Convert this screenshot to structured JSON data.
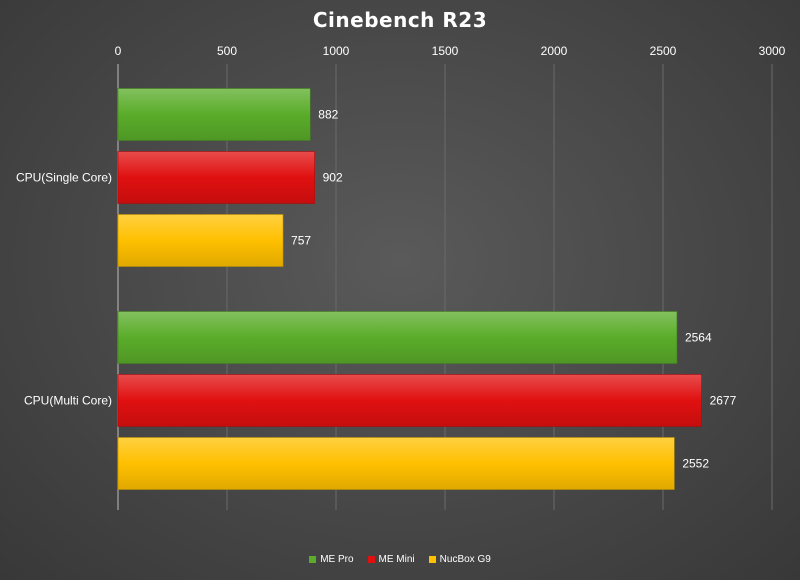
{
  "chart_data": {
    "type": "bar",
    "orientation": "horizontal",
    "title": "Cinebench R23",
    "categories": [
      "CPU(Single Core)",
      "CPU(Multi Core)"
    ],
    "series": [
      {
        "name": "ME Pro",
        "values": [
          882,
          2564
        ],
        "color": "#5aac2a"
      },
      {
        "name": "ME Mini",
        "values": [
          902,
          2677
        ],
        "color": "#e01010"
      },
      {
        "name": "NucBox G9",
        "values": [
          757,
          2552
        ],
        "color": "#ffc000"
      }
    ],
    "xlim": [
      0,
      3000
    ],
    "xticks": [
      0,
      500,
      1000,
      1500,
      2000,
      2500,
      3000
    ],
    "x_axis_position": "top",
    "grid": true,
    "legend": "bottom-center"
  }
}
